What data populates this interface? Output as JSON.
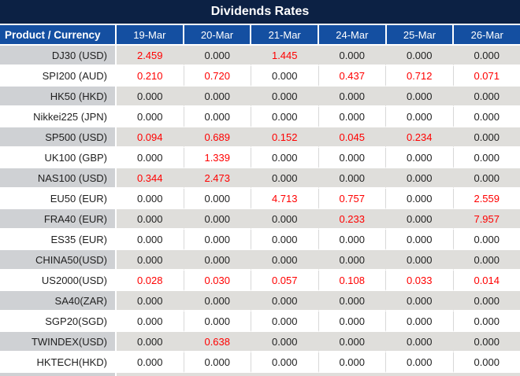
{
  "title": "Dividends Rates",
  "colors": {
    "title_bg": "#0C2144",
    "header_bg": "#144FA1",
    "stripe_product": "#CFD1D4",
    "stripe_data": "#DFDEDB",
    "gridline": "#D8D8D8",
    "text_dark": "#1F1F1F",
    "value_red": "#FF0000"
  },
  "table": {
    "product_header": "Product / Currency",
    "columns": [
      "19-Mar",
      "20-Mar",
      "21-Mar",
      "24-Mar",
      "25-Mar",
      "26-Mar"
    ],
    "rows": [
      {
        "product": "DJ30 (USD)",
        "values": [
          "2.459",
          "0.000",
          "1.445",
          "0.000",
          "0.000",
          "0.000"
        ],
        "red": [
          true,
          false,
          true,
          false,
          false,
          false
        ]
      },
      {
        "product": "SPI200 (AUD)",
        "values": [
          "0.210",
          "0.720",
          "0.000",
          "0.437",
          "0.712",
          "0.071"
        ],
        "red": [
          true,
          true,
          false,
          true,
          true,
          true
        ]
      },
      {
        "product": "HK50 (HKD)",
        "values": [
          "0.000",
          "0.000",
          "0.000",
          "0.000",
          "0.000",
          "0.000"
        ],
        "red": [
          false,
          false,
          false,
          false,
          false,
          false
        ]
      },
      {
        "product": "Nikkei225 (JPN)",
        "values": [
          "0.000",
          "0.000",
          "0.000",
          "0.000",
          "0.000",
          "0.000"
        ],
        "red": [
          false,
          false,
          false,
          false,
          false,
          false
        ]
      },
      {
        "product": "SP500 (USD)",
        "values": [
          "0.094",
          "0.689",
          "0.152",
          "0.045",
          "0.234",
          "0.000"
        ],
        "red": [
          true,
          true,
          true,
          true,
          true,
          false
        ]
      },
      {
        "product": "UK100 (GBP)",
        "values": [
          "0.000",
          "1.339",
          "0.000",
          "0.000",
          "0.000",
          "0.000"
        ],
        "red": [
          false,
          true,
          false,
          false,
          false,
          false
        ]
      },
      {
        "product": "NAS100 (USD)",
        "values": [
          "0.344",
          "2.473",
          "0.000",
          "0.000",
          "0.000",
          "0.000"
        ],
        "red": [
          true,
          true,
          false,
          false,
          false,
          false
        ]
      },
      {
        "product": "EU50 (EUR)",
        "values": [
          "0.000",
          "0.000",
          "4.713",
          "0.757",
          "0.000",
          "2.559"
        ],
        "red": [
          false,
          false,
          true,
          true,
          false,
          true
        ]
      },
      {
        "product": "FRA40 (EUR)",
        "values": [
          "0.000",
          "0.000",
          "0.000",
          "0.233",
          "0.000",
          "7.957"
        ],
        "red": [
          false,
          false,
          false,
          true,
          false,
          true
        ]
      },
      {
        "product": "ES35 (EUR)",
        "values": [
          "0.000",
          "0.000",
          "0.000",
          "0.000",
          "0.000",
          "0.000"
        ],
        "red": [
          false,
          false,
          false,
          false,
          false,
          false
        ]
      },
      {
        "product": "CHINA50(USD)",
        "values": [
          "0.000",
          "0.000",
          "0.000",
          "0.000",
          "0.000",
          "0.000"
        ],
        "red": [
          false,
          false,
          false,
          false,
          false,
          false
        ]
      },
      {
        "product": "US2000(USD)",
        "values": [
          "0.028",
          "0.030",
          "0.057",
          "0.108",
          "0.033",
          "0.014"
        ],
        "red": [
          true,
          true,
          true,
          true,
          true,
          true
        ]
      },
      {
        "product": "SA40(ZAR)",
        "values": [
          "0.000",
          "0.000",
          "0.000",
          "0.000",
          "0.000",
          "0.000"
        ],
        "red": [
          false,
          false,
          false,
          false,
          false,
          false
        ]
      },
      {
        "product": "SGP20(SGD)",
        "values": [
          "0.000",
          "0.000",
          "0.000",
          "0.000",
          "0.000",
          "0.000"
        ],
        "red": [
          false,
          false,
          false,
          false,
          false,
          false
        ]
      },
      {
        "product": "TWINDEX(USD)",
        "values": [
          "0.000",
          "0.638",
          "0.000",
          "0.000",
          "0.000",
          "0.000"
        ],
        "red": [
          false,
          true,
          false,
          false,
          false,
          false
        ]
      },
      {
        "product": "HKTECH(HKD)",
        "values": [
          "0.000",
          "0.000",
          "0.000",
          "0.000",
          "0.000",
          "0.000"
        ],
        "red": [
          false,
          false,
          false,
          false,
          false,
          false
        ]
      }
    ]
  }
}
